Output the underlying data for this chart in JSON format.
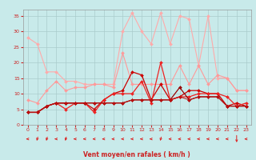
{
  "xlabel": "Vent moyen/en rafales ( km/h )",
  "xlim": [
    -0.5,
    23.5
  ],
  "ylim": [
    0,
    37
  ],
  "yticks": [
    0,
    5,
    10,
    15,
    20,
    25,
    30,
    35
  ],
  "xticks": [
    0,
    1,
    2,
    3,
    4,
    5,
    6,
    7,
    8,
    9,
    10,
    11,
    12,
    13,
    14,
    15,
    16,
    17,
    18,
    19,
    20,
    21,
    22,
    23
  ],
  "background_color": "#c8eaea",
  "grid_color": "#aacccc",
  "series": [
    {
      "x": [
        0,
        1,
        2,
        3,
        4,
        5,
        6,
        7,
        8,
        9,
        10,
        11,
        12,
        13,
        14,
        15,
        16,
        17,
        18,
        19,
        20,
        21,
        22,
        23
      ],
      "y": [
        28,
        26,
        17,
        17,
        14,
        14,
        13,
        13,
        13,
        13,
        30,
        36,
        30,
        26,
        36,
        26,
        35,
        34,
        19,
        35,
        15,
        15,
        11,
        11
      ],
      "color": "#ffaaaa",
      "linewidth": 0.8,
      "markersize": 2.0
    },
    {
      "x": [
        0,
        1,
        2,
        3,
        4,
        5,
        6,
        7,
        8,
        9,
        10,
        11,
        12,
        13,
        14,
        15,
        16,
        17,
        18,
        19,
        20,
        21,
        22,
        23
      ],
      "y": [
        8,
        7,
        11,
        14,
        11,
        12,
        12,
        13,
        13,
        12,
        23,
        13,
        13,
        13,
        13,
        13,
        19,
        13,
        19,
        13,
        16,
        15,
        11,
        11
      ],
      "color": "#ff9999",
      "linewidth": 0.8,
      "markersize": 2.0
    },
    {
      "x": [
        0,
        1,
        2,
        3,
        4,
        5,
        6,
        7,
        8,
        9,
        10,
        11,
        12,
        13,
        14,
        15,
        16,
        17,
        18,
        19,
        20,
        21,
        22,
        23
      ],
      "y": [
        4,
        4,
        6,
        7,
        7,
        7,
        7,
        5,
        8,
        10,
        11,
        17,
        16,
        8,
        13,
        8,
        9,
        11,
        11,
        10,
        10,
        6,
        7,
        6
      ],
      "color": "#cc0000",
      "linewidth": 0.9,
      "markersize": 2.0
    },
    {
      "x": [
        0,
        1,
        2,
        3,
        4,
        5,
        6,
        7,
        8,
        9,
        10,
        11,
        12,
        13,
        14,
        15,
        16,
        17,
        18,
        19,
        20,
        21,
        22,
        23
      ],
      "y": [
        4,
        4,
        6,
        7,
        5,
        7,
        7,
        4,
        8,
        10,
        10,
        10,
        14,
        7,
        20,
        8,
        9,
        9,
        10,
        10,
        10,
        9,
        6,
        7
      ],
      "color": "#ee2222",
      "linewidth": 0.9,
      "markersize": 2.0
    },
    {
      "x": [
        0,
        1,
        2,
        3,
        4,
        5,
        6,
        7,
        8,
        9,
        10,
        11,
        12,
        13,
        14,
        15,
        16,
        17,
        18,
        19,
        20,
        21,
        22,
        23
      ],
      "y": [
        4,
        4,
        6,
        7,
        7,
        7,
        7,
        7,
        7,
        7,
        7,
        8,
        8,
        8,
        8,
        8,
        12,
        8,
        9,
        9,
        9,
        6,
        6,
        6
      ],
      "color": "#990000",
      "linewidth": 0.9,
      "markersize": 2.0
    },
    {
      "x": [
        0,
        1,
        2,
        3,
        4,
        5,
        6,
        7,
        8,
        9,
        10,
        11,
        12,
        13,
        14,
        15,
        16,
        17,
        18,
        19,
        20,
        21,
        22,
        23
      ],
      "y": [
        4,
        4,
        6,
        7,
        7,
        7,
        7,
        7,
        7,
        7,
        7,
        8,
        8,
        8,
        8,
        8,
        9,
        8,
        9,
        9,
        9,
        6,
        6,
        6
      ],
      "color": "#bb1111",
      "linewidth": 0.7,
      "markersize": 1.8
    }
  ],
  "tick_color": "#cc2222",
  "label_color": "#cc2222",
  "arrow_color": "#dd2222",
  "arrow_angles": [
    270,
    225,
    225,
    270,
    225,
    270,
    270,
    270,
    270,
    270,
    270,
    270,
    270,
    270,
    225,
    270,
    270,
    270,
    270,
    270,
    270,
    270,
    180,
    270
  ]
}
